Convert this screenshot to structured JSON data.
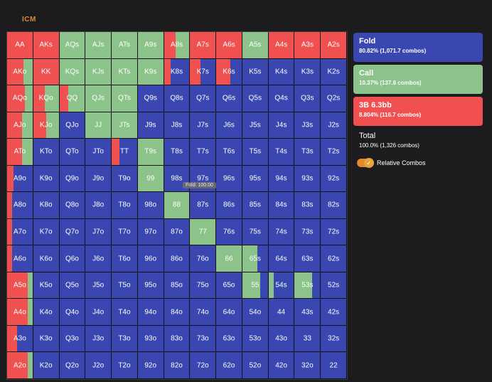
{
  "top_label": "ICM",
  "tooltip": "Fold: 100.00",
  "colors": {
    "fold": "#3a47b0",
    "call": "#8cc38b",
    "raise": "#f05050"
  },
  "legend": {
    "fold": {
      "title": "Fold",
      "sub": "80.82% (1,071.7 combos)"
    },
    "call": {
      "title": "Call",
      "sub": "10.37% (137.6 combos)"
    },
    "raise": {
      "title": "3B 6.3bb",
      "sub": "8.804% (116.7 combos)"
    },
    "total": {
      "title": "Total",
      "sub": "100.0% (1,326 combos)"
    },
    "relative_combos": "Relative Combos",
    "relative_icon": "check-icon"
  },
  "grid": {
    "labels": [
      [
        "AA",
        "AKs",
        "AQs",
        "AJs",
        "ATs",
        "A9s",
        "A8s",
        "A7s",
        "A6s",
        "A5s",
        "A4s",
        "A3s",
        "A2s"
      ],
      [
        "AKo",
        "KK",
        "KQs",
        "KJs",
        "KTs",
        "K9s",
        "K8s",
        "K7s",
        "K6s",
        "K5s",
        "K4s",
        "K3s",
        "K2s"
      ],
      [
        "AQo",
        "KQo",
        "QQ",
        "QJs",
        "QTs",
        "Q9s",
        "Q8s",
        "Q7s",
        "Q6s",
        "Q5s",
        "Q4s",
        "Q3s",
        "Q2s"
      ],
      [
        "AJo",
        "KJo",
        "QJo",
        "JJ",
        "JTs",
        "J9s",
        "J8s",
        "J7s",
        "J6s",
        "J5s",
        "J4s",
        "J3s",
        "J2s"
      ],
      [
        "ATo",
        "KTo",
        "QTo",
        "JTo",
        "TT",
        "T9s",
        "T8s",
        "T7s",
        "T6s",
        "T5s",
        "T4s",
        "T3s",
        "T2s"
      ],
      [
        "A9o",
        "K9o",
        "Q9o",
        "J9o",
        "T9o",
        "99",
        "98s",
        "97s",
        "96s",
        "95s",
        "94s",
        "93s",
        "92s"
      ],
      [
        "A8o",
        "K8o",
        "Q8o",
        "J8o",
        "T8o",
        "98o",
        "88",
        "87s",
        "86s",
        "85s",
        "84s",
        "83s",
        "82s"
      ],
      [
        "A7o",
        "K7o",
        "Q7o",
        "J7o",
        "T7o",
        "97o",
        "87o",
        "77",
        "76s",
        "75s",
        "74s",
        "73s",
        "72s"
      ],
      [
        "A6o",
        "K6o",
        "Q6o",
        "J6o",
        "T6o",
        "96o",
        "86o",
        "76o",
        "66",
        "65s",
        "64s",
        "63s",
        "62s"
      ],
      [
        "A5o",
        "K5o",
        "Q5o",
        "J5o",
        "T5o",
        "95o",
        "85o",
        "75o",
        "65o",
        "55",
        "54s",
        "53s",
        "52s"
      ],
      [
        "A4o",
        "K4o",
        "Q4o",
        "J4o",
        "T4o",
        "94o",
        "84o",
        "74o",
        "64o",
        "54o",
        "44",
        "43s",
        "42s"
      ],
      [
        "A3o",
        "K3o",
        "Q3o",
        "J3o",
        "T3o",
        "93o",
        "83o",
        "73o",
        "63o",
        "53o",
        "43o",
        "33",
        "32s"
      ],
      [
        "A2o",
        "K2o",
        "Q2o",
        "J2o",
        "T2o",
        "92o",
        "82o",
        "72o",
        "62o",
        "52o",
        "42o",
        "32o",
        "22"
      ]
    ],
    "strategy": [
      [
        [
          0,
          0,
          1
        ],
        [
          0,
          0,
          1
        ],
        [
          0,
          1,
          0
        ],
        [
          0,
          1,
          0
        ],
        [
          0,
          1,
          0
        ],
        [
          0,
          1,
          0
        ],
        [
          0,
          0.55,
          0.45
        ],
        [
          0,
          0,
          1
        ],
        [
          0,
          0,
          1
        ],
        [
          0,
          1,
          0
        ],
        [
          0,
          0,
          1
        ],
        [
          0,
          0,
          1
        ],
        [
          0,
          0,
          1
        ]
      ],
      [
        [
          0,
          0.35,
          0.65
        ],
        [
          0,
          0,
          1
        ],
        [
          0,
          1,
          0
        ],
        [
          0,
          1,
          0
        ],
        [
          0,
          1,
          0
        ],
        [
          0,
          1,
          0
        ],
        [
          0.75,
          0,
          0.25
        ],
        [
          0.6,
          0,
          0.4
        ],
        [
          0.45,
          0,
          0.55
        ],
        [
          1,
          0,
          0
        ],
        [
          1,
          0,
          0
        ],
        [
          1,
          0,
          0
        ],
        [
          1,
          0,
          0
        ]
      ],
      [
        [
          0,
          0.3,
          0.7
        ],
        [
          0,
          0.55,
          0.45
        ],
        [
          0,
          0.65,
          0.35
        ],
        [
          0,
          1,
          0
        ],
        [
          0,
          1,
          0
        ],
        [
          1,
          0,
          0
        ],
        [
          1,
          0,
          0
        ],
        [
          1,
          0,
          0
        ],
        [
          1,
          0,
          0
        ],
        [
          1,
          0,
          0
        ],
        [
          1,
          0,
          0
        ],
        [
          1,
          0,
          0
        ],
        [
          1,
          0,
          0
        ]
      ],
      [
        [
          0,
          0.4,
          0.6
        ],
        [
          0,
          0.5,
          0.5
        ],
        [
          1,
          0,
          0
        ],
        [
          0,
          1,
          0
        ],
        [
          0,
          1,
          0
        ],
        [
          1,
          0,
          0
        ],
        [
          1,
          0,
          0
        ],
        [
          1,
          0,
          0
        ],
        [
          1,
          0,
          0
        ],
        [
          1,
          0,
          0
        ],
        [
          1,
          0,
          0
        ],
        [
          1,
          0,
          0
        ],
        [
          1,
          0,
          0
        ]
      ],
      [
        [
          0,
          0.4,
          0.6
        ],
        [
          1,
          0,
          0
        ],
        [
          1,
          0,
          0
        ],
        [
          1,
          0,
          0
        ],
        [
          0.7,
          0,
          0.3
        ],
        [
          0,
          1,
          0
        ],
        [
          1,
          0,
          0
        ],
        [
          1,
          0,
          0
        ],
        [
          1,
          0,
          0
        ],
        [
          1,
          0,
          0
        ],
        [
          1,
          0,
          0
        ],
        [
          1,
          0,
          0
        ],
        [
          1,
          0,
          0
        ]
      ],
      [
        [
          0.75,
          0,
          0.25
        ],
        [
          1,
          0,
          0
        ],
        [
          1,
          0,
          0
        ],
        [
          1,
          0,
          0
        ],
        [
          1,
          0,
          0
        ],
        [
          0,
          1,
          0
        ],
        [
          1,
          0,
          0
        ],
        [
          1,
          0,
          0
        ],
        [
          1,
          0,
          0
        ],
        [
          1,
          0,
          0
        ],
        [
          1,
          0,
          0
        ],
        [
          1,
          0,
          0
        ],
        [
          1,
          0,
          0
        ]
      ],
      [
        [
          0.8,
          0,
          0.2
        ],
        [
          1,
          0,
          0
        ],
        [
          1,
          0,
          0
        ],
        [
          1,
          0,
          0
        ],
        [
          1,
          0,
          0
        ],
        [
          1,
          0,
          0
        ],
        [
          0,
          1,
          0
        ],
        [
          1,
          0,
          0
        ],
        [
          1,
          0,
          0
        ],
        [
          1,
          0,
          0
        ],
        [
          1,
          0,
          0
        ],
        [
          1,
          0,
          0
        ],
        [
          1,
          0,
          0
        ]
      ],
      [
        [
          0.8,
          0,
          0.2
        ],
        [
          1,
          0,
          0
        ],
        [
          1,
          0,
          0
        ],
        [
          1,
          0,
          0
        ],
        [
          1,
          0,
          0
        ],
        [
          1,
          0,
          0
        ],
        [
          1,
          0,
          0
        ],
        [
          0,
          1,
          0
        ],
        [
          1,
          0,
          0
        ],
        [
          1,
          0,
          0
        ],
        [
          1,
          0,
          0
        ],
        [
          1,
          0,
          0
        ],
        [
          1,
          0,
          0
        ]
      ],
      [
        [
          0.8,
          0,
          0.2
        ],
        [
          1,
          0,
          0
        ],
        [
          1,
          0,
          0
        ],
        [
          1,
          0,
          0
        ],
        [
          1,
          0,
          0
        ],
        [
          1,
          0,
          0
        ],
        [
          1,
          0,
          0
        ],
        [
          1,
          0,
          0
        ],
        [
          0,
          1,
          0
        ],
        [
          0.4,
          0.6,
          0
        ],
        [
          1,
          0,
          0
        ],
        [
          1,
          0,
          0
        ],
        [
          1,
          0,
          0
        ]
      ],
      [
        [
          0,
          0.2,
          0.8
        ],
        [
          1,
          0,
          0
        ],
        [
          1,
          0,
          0
        ],
        [
          1,
          0,
          0
        ],
        [
          1,
          0,
          0
        ],
        [
          1,
          0,
          0
        ],
        [
          1,
          0,
          0
        ],
        [
          1,
          0,
          0
        ],
        [
          1,
          0,
          0
        ],
        [
          0.3,
          0.7,
          0
        ],
        [
          0.8,
          0.2,
          0
        ],
        [
          0.3,
          0.7,
          0
        ],
        [
          1,
          0,
          0
        ]
      ],
      [
        [
          0,
          0.2,
          0.8
        ],
        [
          1,
          0,
          0
        ],
        [
          1,
          0,
          0
        ],
        [
          1,
          0,
          0
        ],
        [
          1,
          0,
          0
        ],
        [
          1,
          0,
          0
        ],
        [
          1,
          0,
          0
        ],
        [
          1,
          0,
          0
        ],
        [
          1,
          0,
          0
        ],
        [
          1,
          0,
          0
        ],
        [
          1,
          0,
          0
        ],
        [
          1,
          0,
          0
        ],
        [
          1,
          0,
          0
        ]
      ],
      [
        [
          0.6,
          0,
          0.4
        ],
        [
          1,
          0,
          0
        ],
        [
          1,
          0,
          0
        ],
        [
          1,
          0,
          0
        ],
        [
          1,
          0,
          0
        ],
        [
          1,
          0,
          0
        ],
        [
          1,
          0,
          0
        ],
        [
          1,
          0,
          0
        ],
        [
          1,
          0,
          0
        ],
        [
          1,
          0,
          0
        ],
        [
          1,
          0,
          0
        ],
        [
          1,
          0,
          0
        ],
        [
          1,
          0,
          0
        ]
      ],
      [
        [
          0,
          0.2,
          0.8
        ],
        [
          1,
          0,
          0
        ],
        [
          1,
          0,
          0
        ],
        [
          1,
          0,
          0
        ],
        [
          1,
          0,
          0
        ],
        [
          1,
          0,
          0
        ],
        [
          1,
          0,
          0
        ],
        [
          1,
          0,
          0
        ],
        [
          1,
          0,
          0
        ],
        [
          1,
          0,
          0
        ],
        [
          1,
          0,
          0
        ],
        [
          1,
          0,
          0
        ],
        [
          1,
          0,
          0
        ]
      ]
    ]
  }
}
